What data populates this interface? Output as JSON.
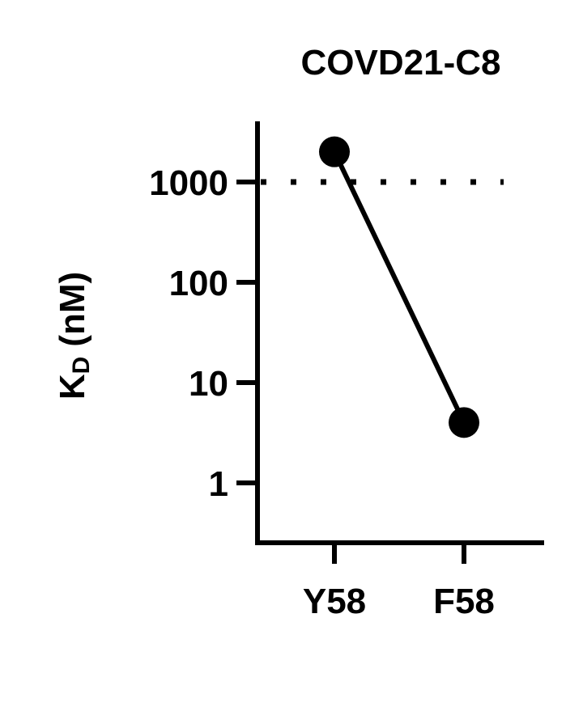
{
  "chart_data": {
    "type": "line",
    "title": "COVD21-C8",
    "ylabel": "K",
    "ylabel_subscript": "D",
    "ylabel_unit": "(nM)",
    "yscale": "log",
    "ylim": [
      0.5,
      3000
    ],
    "yticks": [
      1,
      10,
      100,
      1000
    ],
    "ytick_labels": [
      "1",
      "10",
      "100",
      "1000"
    ],
    "categories": [
      "Y58",
      "F58"
    ],
    "values": [
      2000,
      4
    ],
    "reference_line": {
      "y": 1000,
      "style": "dotted"
    },
    "grid": false,
    "color": "#000000"
  }
}
